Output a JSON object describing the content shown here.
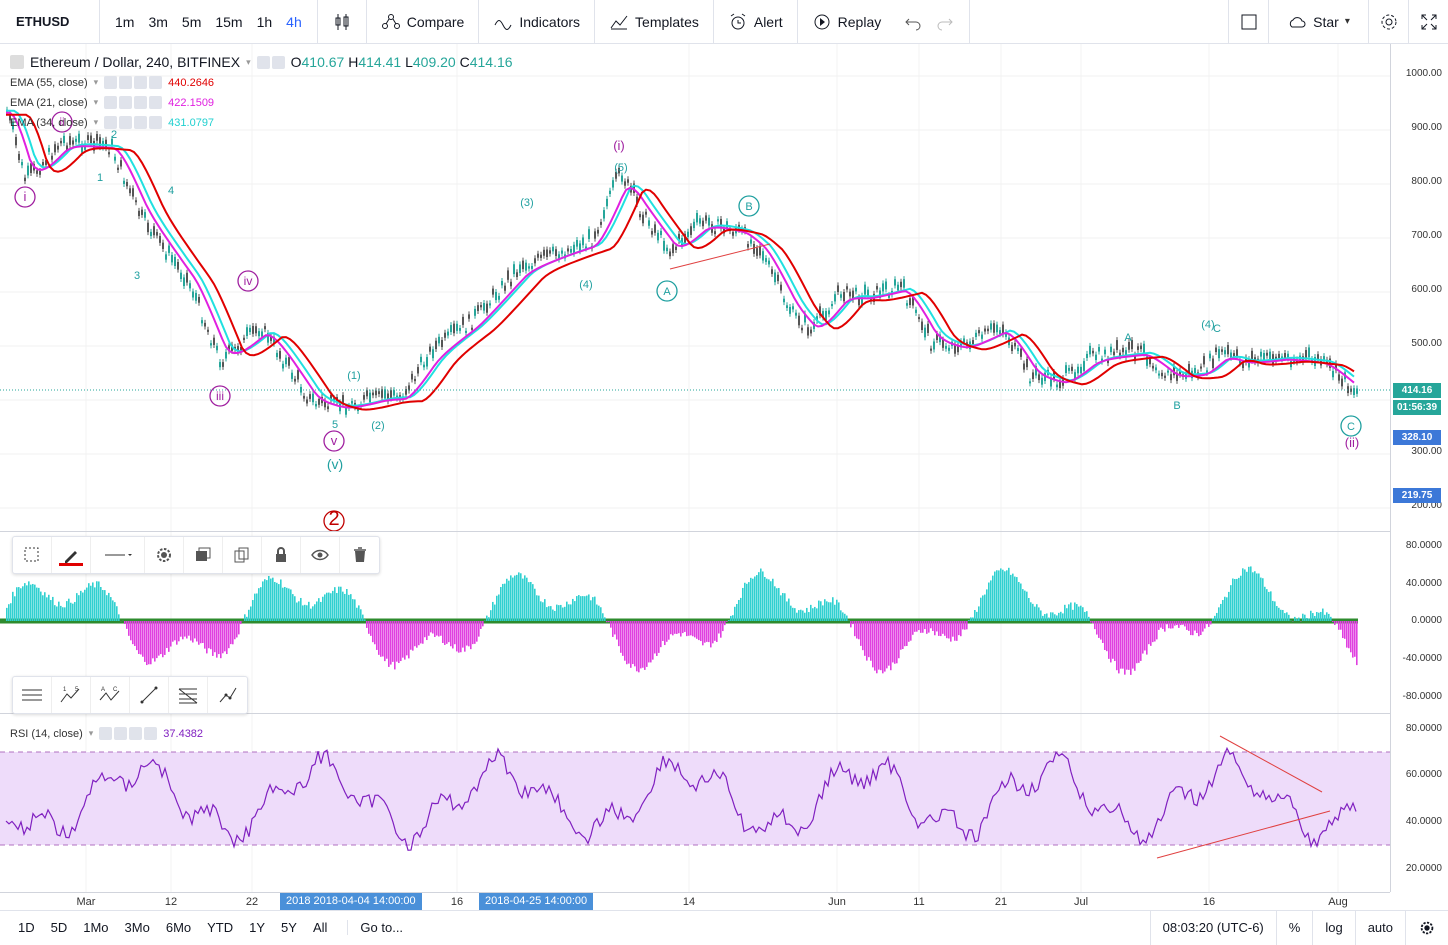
{
  "topbar": {
    "symbol": "ETHUSD",
    "timeframes": [
      "1m",
      "3m",
      "5m",
      "15m",
      "1h",
      "4h"
    ],
    "active_timeframe": "4h",
    "compare": "Compare",
    "indicators": "Indicators",
    "templates": "Templates",
    "alert": "Alert",
    "replay": "Replay",
    "layout": "Star"
  },
  "legend": {
    "title": "Ethereum / Dollar, 240, BITFINEX",
    "open_label": "O",
    "open": "410.67",
    "high_label": "H",
    "high": "414.41",
    "low_label": "L",
    "low": "409.20",
    "close_label": "C",
    "close": "414.16",
    "ema1": {
      "name": "EMA (55, close)",
      "value": "440.2646",
      "color": "#e00000"
    },
    "ema2": {
      "name": "EMA (21, close)",
      "value": "422.1509",
      "color": "#e020e0"
    },
    "ema3": {
      "name": "EMA (34, close)",
      "value": "431.0797",
      "color": "#20e0e0"
    }
  },
  "price_axis": {
    "ticks": [
      "1000.00",
      "900.00",
      "800.00",
      "700.00",
      "600.00",
      "500.00",
      "400.00",
      "300.00",
      "200.00"
    ],
    "last_price": "414.16",
    "countdown": "01:56:39",
    "level1": "328.10",
    "level2": "219.75"
  },
  "osc_axis": {
    "ticks": [
      "80.0000",
      "40.0000",
      "0.0000",
      "-40.0000",
      "-80.0000"
    ]
  },
  "rsi": {
    "name": "RSI (14, close)",
    "value": "37.4382",
    "ticks": [
      "80.0000",
      "60.0000",
      "40.0000",
      "20.0000"
    ]
  },
  "wave_labels": {
    "i_circle": "i",
    "ii_circle": "ii",
    "iii_circle": "iii",
    "iv_circle": "iv",
    "v_circle": "v",
    "v_paren": "(v)",
    "two_circle": "2",
    "i_paren": "(i)",
    "ii_paren": "(ii)",
    "a_circle1": "A",
    "b_circle": "B",
    "c_circle": "C",
    "n1": "1",
    "n2": "2",
    "n3": "3",
    "n4": "4",
    "n5": "5",
    "p1": "(1)",
    "p2": "(2)",
    "p3": "(3)",
    "p4": "(4)",
    "p5": "(5)",
    "la": "A",
    "lb": "B",
    "lc": "C",
    "p4c": "(4)"
  },
  "time_axis": {
    "labels": [
      "Mar",
      "12",
      "22",
      "16",
      "14",
      "Jun",
      "11",
      "21",
      "Jul",
      "16",
      "Aug"
    ],
    "badge1": "2018 2018-04-04 14:00:00",
    "badge2": "2018-04-25 14:00:00"
  },
  "bottombar": {
    "ranges": [
      "1D",
      "5D",
      "1Mo",
      "3Mo",
      "6Mo",
      "YTD",
      "1Y",
      "5Y",
      "All"
    ],
    "goto": "Go to...",
    "clock": "08:03:20 (UTC-6)",
    "percent": "%",
    "log": "log",
    "auto": "auto"
  },
  "colors": {
    "ema55": "#e00000",
    "ema21": "#e020e0",
    "ema34": "#20e0e0",
    "up": "#26a69a",
    "wave_purple": "#a020a0",
    "wave_teal": "#20a0a0",
    "rsi_line": "#8020c0",
    "rsi_band": "#eedcfa"
  }
}
